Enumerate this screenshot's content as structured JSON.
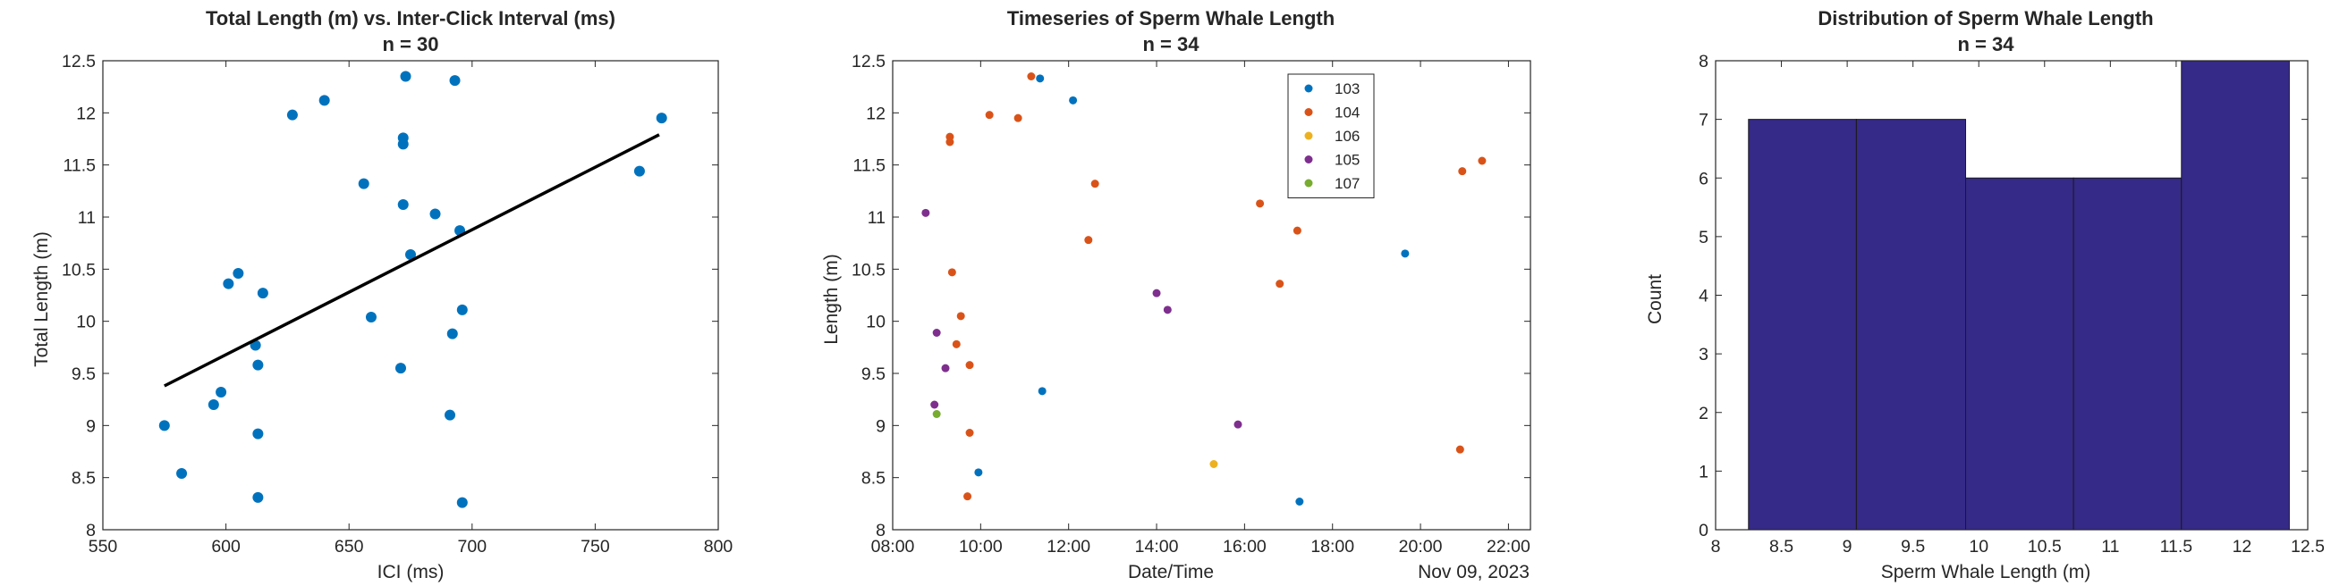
{
  "colors": {
    "axis": "#262626",
    "series_103": "#0072BD",
    "series_104": "#D95319",
    "series_106": "#EDB120",
    "series_105": "#7E2F8E",
    "series_107": "#77AC30",
    "fit_line": "#000000",
    "hist_fill": "#352A87",
    "hist_edge": "#1A1A1A"
  },
  "chart_data": [
    {
      "type": "scatter",
      "title": "Total Length (m) vs. Inter-Click Interval (ms)",
      "subtitle": "n = 30",
      "xlabel": "ICI (ms)",
      "ylabel": "Total Length (m)",
      "xlim": [
        550,
        800
      ],
      "ylim": [
        8,
        12.5
      ],
      "xticks": [
        550,
        600,
        650,
        700,
        750,
        800
      ],
      "yticks": [
        8,
        8.5,
        9,
        9.5,
        10,
        10.5,
        11,
        11.5,
        12,
        12.5
      ],
      "grid": false,
      "points": [
        [
          575,
          9.0
        ],
        [
          582,
          8.54
        ],
        [
          595,
          9.2
        ],
        [
          598,
          9.32
        ],
        [
          601,
          10.36
        ],
        [
          605,
          10.46
        ],
        [
          612,
          9.77
        ],
        [
          613,
          9.58
        ],
        [
          613,
          8.92
        ],
        [
          613,
          8.31
        ],
        [
          615,
          10.27
        ],
        [
          627,
          11.98
        ],
        [
          640,
          12.12
        ],
        [
          656,
          11.32
        ],
        [
          659,
          10.04
        ],
        [
          671,
          9.55
        ],
        [
          672,
          11.76
        ],
        [
          672,
          11.7
        ],
        [
          672,
          11.12
        ],
        [
          673,
          12.35
        ],
        [
          675,
          10.64
        ],
        [
          685,
          11.03
        ],
        [
          691,
          9.1
        ],
        [
          692,
          9.88
        ],
        [
          693,
          12.31
        ],
        [
          695,
          10.87
        ],
        [
          696,
          10.11
        ],
        [
          696,
          8.26
        ],
        [
          768,
          11.44
        ],
        [
          777,
          11.95
        ]
      ],
      "fit_line": {
        "x": [
          575,
          776
        ],
        "y": [
          9.38,
          11.79
        ]
      }
    },
    {
      "type": "scatter",
      "title": "Timeseries of Sperm Whale Length",
      "subtitle": "n = 34",
      "xlabel": "Date/Time",
      "ylabel": "Length (m)",
      "date_label": "Nov 09, 2023",
      "x_unit": "hours",
      "xlim": [
        8,
        22.5
      ],
      "ylim": [
        8,
        12.5
      ],
      "xticks": [
        8,
        10,
        12,
        14,
        16,
        18,
        20,
        22
      ],
      "xtick_labels": [
        "08:00",
        "10:00",
        "12:00",
        "14:00",
        "16:00",
        "18:00",
        "20:00",
        "22:00"
      ],
      "yticks": [
        8,
        8.5,
        9,
        9.5,
        10,
        10.5,
        11,
        11.5,
        12,
        12.5
      ],
      "legend_position": "top-right",
      "series": [
        {
          "name": "103",
          "points": [
            [
              9.95,
              8.55
            ],
            [
              11.35,
              12.33
            ],
            [
              11.4,
              9.33
            ],
            [
              12.1,
              12.12
            ],
            [
              17.25,
              8.27
            ],
            [
              19.65,
              10.65
            ]
          ]
        },
        {
          "name": "104",
          "points": [
            [
              9.3,
              11.72
            ],
            [
              9.3,
              11.77
            ],
            [
              9.35,
              10.47
            ],
            [
              9.45,
              9.78
            ],
            [
              9.55,
              10.05
            ],
            [
              9.7,
              8.32
            ],
            [
              9.75,
              8.93
            ],
            [
              9.75,
              9.58
            ],
            [
              10.2,
              11.98
            ],
            [
              10.85,
              11.95
            ],
            [
              11.15,
              12.35
            ],
            [
              12.45,
              10.78
            ],
            [
              12.6,
              11.32
            ],
            [
              16.35,
              11.13
            ],
            [
              16.8,
              10.36
            ],
            [
              17.2,
              10.87
            ],
            [
              20.9,
              8.77
            ],
            [
              20.95,
              11.44
            ],
            [
              21.4,
              11.54
            ]
          ]
        },
        {
          "name": "106",
          "points": [
            [
              15.3,
              8.63
            ]
          ]
        },
        {
          "name": "105",
          "points": [
            [
              8.75,
              11.04
            ],
            [
              8.95,
              9.2
            ],
            [
              9.0,
              9.89
            ],
            [
              9.2,
              9.55
            ],
            [
              14.0,
              10.27
            ],
            [
              14.25,
              10.11
            ],
            [
              15.85,
              9.01
            ]
          ]
        },
        {
          "name": "107",
          "points": [
            [
              9.0,
              9.11
            ]
          ]
        }
      ]
    },
    {
      "type": "histogram",
      "title": "Distribution of Sperm Whale Length",
      "subtitle": "n = 34",
      "xlabel": "Sperm Whale Length (m)",
      "ylabel": "Count",
      "xlim": [
        8,
        12.5
      ],
      "ylim": [
        0,
        8
      ],
      "xticks": [
        8,
        8.5,
        9,
        9.5,
        10,
        10.5,
        11,
        11.5,
        12,
        12.5
      ],
      "yticks": [
        0,
        1,
        2,
        3,
        4,
        5,
        6,
        7,
        8
      ],
      "bin_edges": [
        8.25,
        9.07,
        9.9,
        10.72,
        11.54,
        12.36
      ],
      "counts": [
        7,
        7,
        6,
        6,
        8
      ]
    }
  ]
}
